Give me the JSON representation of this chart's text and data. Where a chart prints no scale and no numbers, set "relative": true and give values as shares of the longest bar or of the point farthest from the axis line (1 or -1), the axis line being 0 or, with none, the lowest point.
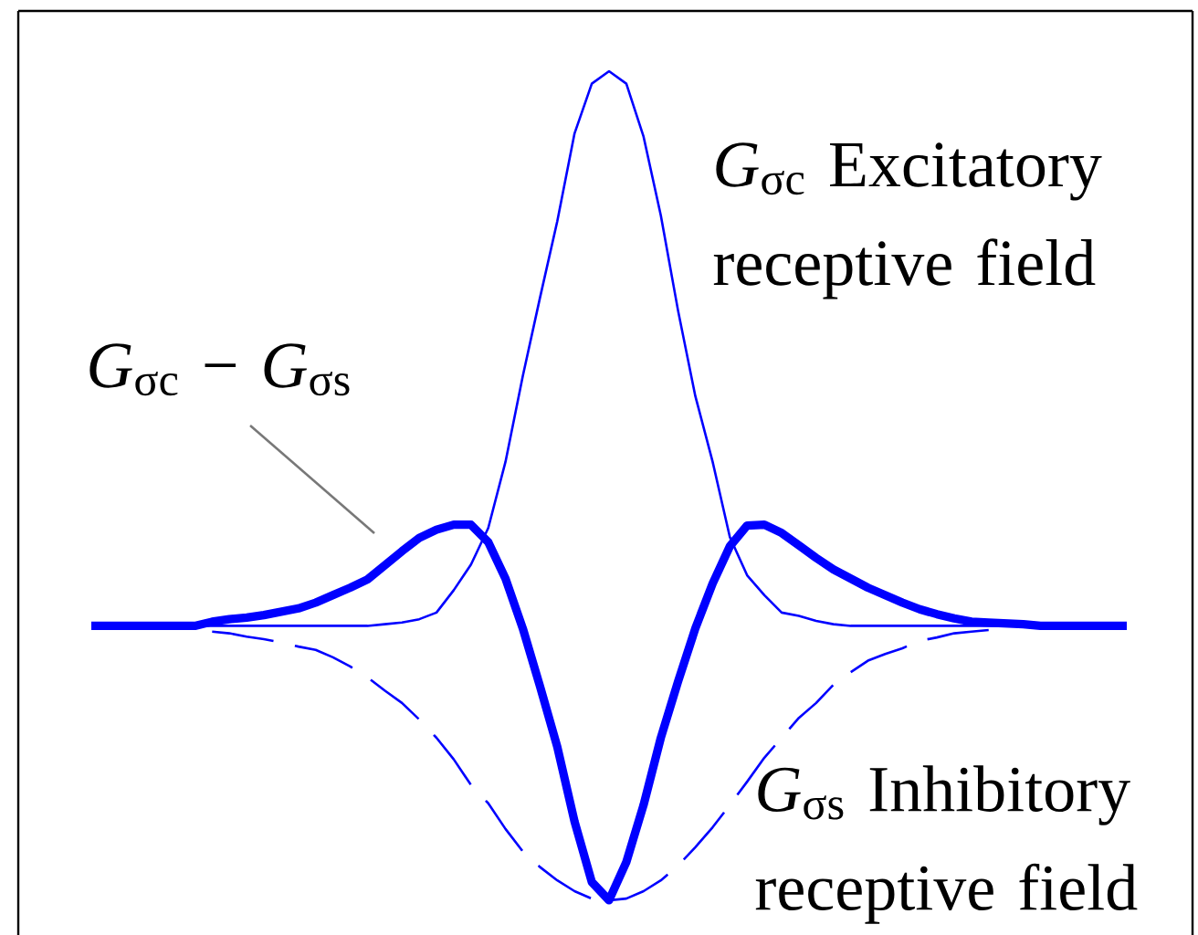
{
  "chart_data": {
    "type": "line",
    "relative": true,
    "categories": [
      null,
      null,
      null,
      null,
      null,
      null,
      null,
      null,
      null,
      null,
      null,
      null,
      null,
      null,
      null,
      null,
      null,
      null,
      null,
      null,
      null,
      null,
      null,
      null,
      null,
      null,
      null,
      null,
      null,
      null,
      null,
      null,
      null,
      null,
      null,
      null,
      null,
      null,
      null,
      null,
      null,
      null,
      null,
      null,
      null,
      null,
      null,
      null,
      null,
      null,
      null,
      null,
      null,
      null,
      null,
      null,
      null,
      null,
      null,
      null,
      null
    ],
    "series": [
      {
        "name": "*G*$_{σc}$ Excitatory receptive field",
        "color": "#0000ff",
        "line_style": "solid",
        "values": [
          null,
          null,
          null,
          null,
          null,
          null,
          0.331,
          0.331,
          0.331,
          0.331,
          0.331,
          0.331,
          0.331,
          0.331,
          0.331,
          0.331,
          0.331,
          0.333,
          0.335,
          0.339,
          0.347,
          0.374,
          0.405,
          0.449,
          0.529,
          0.632,
          0.727,
          0.819,
          0.925,
          0.985,
          1,
          0.985,
          0.921,
          0.826,
          0.711,
          0.608,
          0.529,
          0.438,
          0.392,
          0.368,
          0.347,
          0.343,
          0.337,
          0.333,
          0.331,
          0.331,
          0.331,
          0.331,
          0.331,
          0.331,
          0.331,
          0.331,
          0.331,
          0.331,
          0.331,
          null,
          null,
          null,
          null,
          null,
          null
        ]
      },
      {
        "name": "*G*$_{σs}$ Inhibitory receptive field",
        "color": "#0000ff",
        "line_style": "dashed",
        "values": [
          null,
          null,
          null,
          null,
          null,
          null,
          null,
          0.324,
          0.322,
          0.318,
          0.315,
          0.311,
          0.306,
          0.302,
          0.293,
          0.282,
          0.269,
          0.253,
          0.238,
          0.218,
          0.196,
          0.17,
          0.139,
          0.117,
          0.086,
          0.059,
          0.04,
          0.024,
          0.011,
          0.002,
          0,
          0.002,
          0.011,
          0.024,
          0.042,
          0.064,
          0.088,
          0.115,
          0.143,
          0.172,
          0.196,
          0.22,
          0.238,
          0.26,
          0.275,
          0.289,
          0.297,
          0.304,
          0.313,
          0.317,
          0.322,
          0.324,
          0.326,
          null,
          null,
          null,
          null,
          null,
          null,
          null,
          null
        ]
      },
      {
        "name": "*G*$_{σc}$ − *G*$_{σs}$",
        "color": "#0000ff",
        "line_style": "solid",
        "values": [
          0.331,
          0.331,
          0.331,
          0.331,
          0.331,
          0.331,
          0.331,
          0.336,
          0.339,
          0.341,
          0.344,
          0.348,
          0.352,
          0.359,
          0.368,
          0.377,
          0.387,
          0.404,
          0.421,
          0.437,
          0.447,
          0.453,
          0.453,
          0.432,
          0.388,
          0.328,
          0.258,
          0.185,
          0.095,
          0.022,
          0,
          0.046,
          0.115,
          0.196,
          0.264,
          0.328,
          0.382,
          0.427,
          0.452,
          0.453,
          0.443,
          0.428,
          0.413,
          0.399,
          0.388,
          0.377,
          0.368,
          0.359,
          0.351,
          0.345,
          0.34,
          0.336,
          0.335,
          0.334,
          0.333,
          0.331,
          0.331,
          0.331,
          0.331,
          0.331,
          0.331
        ]
      }
    ]
  }
}
